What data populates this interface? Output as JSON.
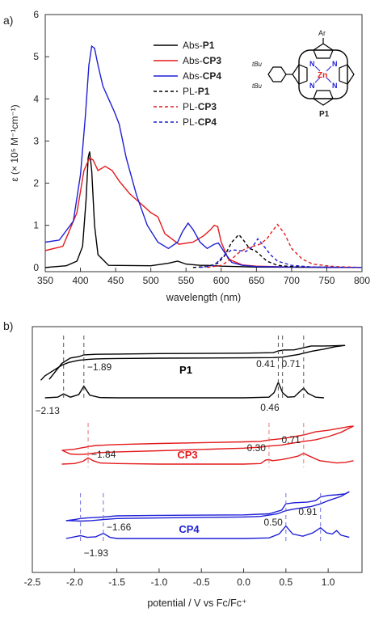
{
  "panel_a": {
    "label": "a)",
    "legend": [
      {
        "prefix": "Abs-",
        "name": "P1",
        "color": "#000000",
        "dash": false
      },
      {
        "prefix": "Abs-",
        "name": "CP3",
        "color": "#e41a1c",
        "dash": false
      },
      {
        "prefix": "Abs-",
        "name": "CP4",
        "color": "#1f1fd6",
        "dash": false
      },
      {
        "prefix": "PL-",
        "name": "P1",
        "color": "#000000",
        "dash": true
      },
      {
        "prefix": "PL-",
        "name": "CP3",
        "color": "#e41a1c",
        "dash": true
      },
      {
        "prefix": "PL-",
        "name": "CP4",
        "color": "#1f1fd6",
        "dash": true
      }
    ],
    "molecule": {
      "ar": "Ar",
      "zn": "Zn",
      "n": "N",
      "tbu": "tBu",
      "label": "P1"
    }
  },
  "panel_b": {
    "label": "b)"
  },
  "chart_data": [
    {
      "type": "line",
      "xlabel": "wavelength (nm)",
      "ylabel": "ε (× 10⁵ M⁻¹cm⁻¹)",
      "xlim": [
        350,
        800
      ],
      "ylim": [
        -0.1,
        6
      ],
      "xticks": [
        350,
        400,
        450,
        500,
        550,
        600,
        650,
        700,
        750,
        800
      ],
      "yticks": [
        0,
        1,
        2,
        3,
        4,
        5,
        6
      ],
      "legend_position": "top-right",
      "series": [
        {
          "name": "Abs-P1",
          "color": "#000000",
          "dash": false,
          "x": [
            350,
            380,
            395,
            403,
            408,
            411,
            413,
            416,
            420,
            425,
            440,
            500,
            525,
            538,
            550,
            570,
            580,
            600,
            650,
            800
          ],
          "y": [
            0.0,
            0.04,
            0.15,
            0.5,
            1.6,
            2.6,
            2.75,
            2.3,
            1.0,
            0.3,
            0.05,
            0.04,
            0.1,
            0.15,
            0.08,
            0.05,
            0.05,
            0.03,
            0.01,
            0.0
          ]
        },
        {
          "name": "Abs-CP3",
          "color": "#e41a1c",
          "dash": false,
          "x": [
            350,
            375,
            395,
            405,
            413,
            418,
            425,
            435,
            445,
            455,
            470,
            480,
            490,
            500,
            510,
            520,
            540,
            560,
            575,
            585,
            590,
            595,
            600,
            610,
            630,
            650,
            700,
            800
          ],
          "y": [
            0.4,
            0.5,
            1.3,
            2.3,
            2.6,
            2.55,
            2.3,
            2.4,
            2.3,
            2.05,
            1.75,
            1.6,
            1.45,
            1.3,
            1.2,
            0.8,
            0.55,
            0.6,
            0.75,
            0.9,
            1.0,
            0.97,
            0.6,
            0.2,
            0.06,
            0.03,
            0.01,
            0.0
          ]
        },
        {
          "name": "Abs-CP4",
          "color": "#1f1fd6",
          "dash": false,
          "x": [
            350,
            370,
            390,
            400,
            407,
            412,
            416,
            420,
            425,
            432,
            440,
            448,
            455,
            465,
            480,
            495,
            510,
            525,
            538,
            545,
            553,
            560,
            570,
            580,
            590,
            596,
            605,
            615,
            630,
            650,
            700,
            800
          ],
          "y": [
            0.6,
            0.65,
            1.1,
            2.2,
            3.6,
            4.8,
            5.25,
            5.2,
            4.8,
            4.3,
            4.0,
            3.7,
            3.4,
            2.6,
            1.7,
            1.0,
            0.6,
            0.45,
            0.6,
            0.85,
            1.05,
            0.9,
            0.6,
            0.45,
            0.55,
            0.58,
            0.35,
            0.12,
            0.05,
            0.02,
            0.01,
            0.0
          ]
        },
        {
          "name": "PL-P1",
          "color": "#000000",
          "dash": true,
          "x": [
            560,
            580,
            595,
            605,
            615,
            625,
            633,
            640,
            648,
            655,
            665,
            680,
            700,
            730,
            800
          ],
          "y": [
            0.0,
            0.02,
            0.1,
            0.28,
            0.6,
            0.78,
            0.62,
            0.45,
            0.4,
            0.3,
            0.15,
            0.05,
            0.02,
            0.01,
            0.0
          ]
        },
        {
          "name": "PL-CP3",
          "color": "#e41a1c",
          "dash": true,
          "x": [
            580,
            600,
            615,
            625,
            635,
            645,
            655,
            665,
            672,
            680,
            690,
            700,
            715,
            730,
            760,
            800
          ],
          "y": [
            0.0,
            0.05,
            0.2,
            0.35,
            0.45,
            0.5,
            0.55,
            0.68,
            0.85,
            1.02,
            0.8,
            0.45,
            0.2,
            0.08,
            0.02,
            0.0
          ]
        },
        {
          "name": "PL-CP4",
          "color": "#1f1fd6",
          "dash": true,
          "x": [
            570,
            590,
            605,
            615,
            625,
            635,
            645,
            652,
            660,
            670,
            680,
            700,
            730,
            800
          ],
          "y": [
            0.0,
            0.05,
            0.3,
            0.42,
            0.4,
            0.38,
            0.5,
            0.68,
            0.52,
            0.3,
            0.15,
            0.05,
            0.01,
            0.0
          ]
        }
      ]
    },
    {
      "type": "line",
      "xlabel": "potential / V vs Fc/Fc⁺",
      "xlim": [
        -2.5,
        1.4
      ],
      "xticks": [
        -2.5,
        -2.0,
        -1.5,
        -1.0,
        -0.5,
        0,
        0.5,
        1.0
      ],
      "xtick_labels": [
        "-2.5",
        "-2.0",
        "-1.5",
        "-1.0",
        "-0.5",
        "0.0",
        "0.5",
        "1.0"
      ],
      "series": [
        {
          "name": "P1",
          "color": "#000000",
          "label_color": "#000000",
          "cv_cathodic": {
            "x": [
              -2.3,
              -2.15,
              -2.05,
              -1.95,
              -1.89,
              -1.75,
              -1.5,
              -1.0,
              0,
              0.35,
              0.41,
              0.47,
              0.6,
              0.71,
              0.8,
              0.95,
              1.1,
              1.2
            ],
            "y": [
              -2.2,
              -0.4,
              0.2,
              0.35,
              0.55,
              0.62,
              0.65,
              0.7,
              0.75,
              0.8,
              1.0,
              1.1,
              1.12,
              1.35,
              1.55,
              1.55,
              1.58,
              1.62
            ]
          },
          "cv_anodic": {
            "x": [
              1.2,
              1.1,
              0.95,
              0.8,
              0.71,
              0.65,
              0.55,
              0.46,
              0.35,
              0,
              -1.0,
              -1.5,
              -1.75,
              -1.83,
              -1.95,
              -2.07,
              -2.15,
              -2.25,
              -2.35,
              -2.4
            ],
            "y": [
              1.62,
              1.5,
              1.2,
              0.95,
              0.75,
              0.6,
              0.45,
              0.3,
              0.25,
              0.22,
              0.18,
              0.15,
              0.1,
              0.05,
              -0.05,
              -0.3,
              -0.6,
              -1.2,
              -1.8,
              -2.3
            ]
          },
          "dpv": {
            "x": [
              -2.35,
              -2.2,
              -2.13,
              -2.05,
              -1.95,
              -1.89,
              -1.82,
              -1.7,
              -1.5,
              -1.0,
              0,
              0.3,
              0.36,
              0.41,
              0.46,
              0.52,
              0.6,
              0.66,
              0.71,
              0.76,
              0.85,
              0.95
            ],
            "y": [
              0.0,
              0.05,
              0.3,
              0.05,
              0.25,
              0.9,
              0.2,
              0.02,
              0.0,
              0.0,
              0.0,
              0.05,
              0.4,
              1.2,
              0.4,
              0.05,
              0.08,
              0.45,
              0.75,
              0.35,
              0.05,
              0.0
            ]
          },
          "labels": [
            {
              "x": -2.13,
              "text": "−2.13"
            },
            {
              "x": -1.89,
              "text": "−1.89"
            },
            {
              "x": 0.41,
              "text": "0.41"
            },
            {
              "x": 0.46,
              "text": "0.46"
            },
            {
              "x": 0.71,
              "text": "0.71"
            }
          ]
        },
        {
          "name": "CP3",
          "color": "#e41a1c",
          "label_color": "#e41a1c",
          "cv_cathodic": {
            "x": [
              -2.15,
              -2.0,
              -1.9,
              -1.84,
              -1.75,
              -1.5,
              -1.0,
              0,
              0.2,
              0.3,
              0.45,
              0.6,
              0.71,
              0.85,
              1.0,
              1.1,
              1.25,
              1.3
            ],
            "y": [
              -0.3,
              -0.2,
              -0.05,
              0.05,
              0.15,
              0.25,
              0.35,
              0.5,
              0.55,
              0.68,
              0.8,
              1.0,
              1.15,
              1.45,
              1.6,
              1.75,
              1.95,
              2.0
            ]
          },
          "cv_anodic": {
            "x": [
              1.3,
              1.15,
              1.0,
              0.85,
              0.71,
              0.55,
              0.45,
              0.3,
              0.2,
              0,
              -1.0,
              -1.5,
              -1.75,
              -1.84,
              -1.95,
              -2.05,
              -2.15
            ],
            "y": [
              2.0,
              1.4,
              1.0,
              0.7,
              0.55,
              0.35,
              0.2,
              0.1,
              0.0,
              -0.1,
              -0.35,
              -0.45,
              -0.55,
              -0.65,
              -0.7,
              -0.65,
              -0.3
            ]
          },
          "dpv": {
            "x": [
              -2.15,
              -2.0,
              -1.9,
              -1.84,
              -1.78,
              -1.7,
              -1.5,
              -1.0,
              0,
              0.2,
              0.26,
              0.3,
              0.34,
              0.45,
              0.55,
              0.64,
              0.71,
              0.78,
              0.9,
              1.0,
              1.1,
              1.2,
              1.3
            ],
            "y": [
              0.0,
              0.05,
              0.25,
              0.55,
              0.3,
              0.1,
              0.05,
              0.0,
              0.0,
              0.05,
              0.35,
              0.4,
              0.3,
              0.4,
              0.55,
              0.7,
              0.95,
              0.7,
              0.3,
              0.2,
              0.1,
              0.15,
              0.3
            ]
          },
          "labels": [
            {
              "x": -1.84,
              "text": "−1.84"
            },
            {
              "x": 0.3,
              "text": "0.30"
            },
            {
              "x": 0.71,
              "text": "0.71"
            }
          ]
        },
        {
          "name": "CP4",
          "color": "#1f1fd6",
          "label_color": "#1f1fd6",
          "cv_cathodic": {
            "x": [
              -2.1,
              -2.0,
              -1.93,
              -1.85,
              -1.66,
              -1.5,
              -1.0,
              0,
              0.3,
              0.45,
              0.5,
              0.6,
              0.75,
              0.85,
              0.91,
              1.0,
              1.1,
              1.2,
              1.25
            ],
            "y": [
              -0.3,
              -0.2,
              -0.1,
              -0.05,
              0.05,
              0.15,
              0.2,
              0.25,
              0.35,
              0.7,
              1.3,
              1.4,
              1.45,
              1.6,
              1.95,
              2.1,
              2.15,
              2.25,
              2.45
            ]
          },
          "cv_anodic": {
            "x": [
              1.25,
              1.15,
              1.0,
              0.91,
              0.8,
              0.6,
              0.5,
              0.4,
              0.2,
              0,
              -1.0,
              -1.5,
              -1.66,
              -1.8,
              -1.93,
              -2.05,
              -2.1
            ],
            "y": [
              2.45,
              2.0,
              1.6,
              1.3,
              1.05,
              0.8,
              0.65,
              0.35,
              0.1,
              0.05,
              -0.05,
              -0.1,
              -0.2,
              -0.3,
              -0.35,
              -0.3,
              -0.3
            ]
          },
          "dpv": {
            "x": [
              -2.1,
              -2.0,
              -1.93,
              -1.85,
              -1.75,
              -1.66,
              -1.58,
              -1.5,
              -1.0,
              0,
              0.3,
              0.42,
              0.5,
              0.58,
              0.7,
              0.82,
              0.91,
              0.98,
              1.05,
              1.1,
              1.15,
              1.25
            ],
            "y": [
              0.0,
              0.15,
              0.25,
              0.1,
              0.15,
              0.45,
              0.1,
              0.0,
              0.0,
              0.0,
              0.05,
              0.4,
              1.1,
              0.4,
              0.2,
              0.5,
              0.95,
              0.5,
              0.4,
              0.7,
              0.3,
              0.1
            ]
          },
          "labels": [
            {
              "x": -1.93,
              "text": "−1.93"
            },
            {
              "x": -1.66,
              "text": "−1.66"
            },
            {
              "x": 0.5,
              "text": "0.50"
            },
            {
              "x": 0.91,
              "text": "0.91"
            }
          ]
        }
      ]
    }
  ]
}
